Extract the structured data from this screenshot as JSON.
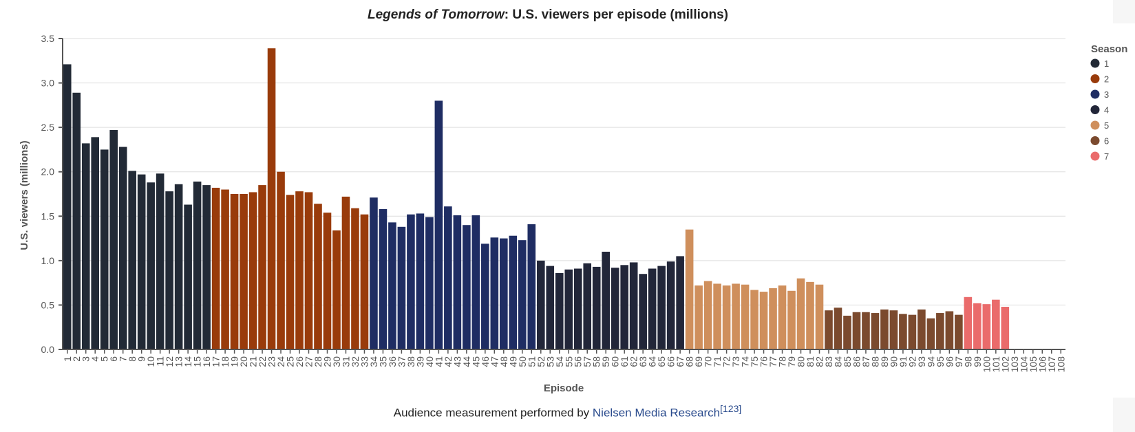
{
  "colors": {
    "season1": "#222a36",
    "season2": "#993b0b",
    "season3": "#1f2d63",
    "season4": "#222639",
    "season5": "#cf8f5c",
    "season6": "#7b4a2e",
    "season7": "#ea6b6b",
    "link": "#2a4b8d"
  },
  "footer": {
    "prefix": "Audience measurement performed by ",
    "link": "Nielsen Media Research",
    "ref": "[123]"
  },
  "chart_data": {
    "type": "bar",
    "title_italic": "Legends of Tomorrow",
    "title_rest": ": U.S. viewers per episode (millions)",
    "xlabel": "Episode",
    "ylabel": "U.S. viewers (millions)",
    "ylim": [
      0,
      3.5
    ],
    "yticks": [
      "0.0",
      "0.5",
      "1.0",
      "1.5",
      "2.0",
      "2.5",
      "3.0",
      "3.5"
    ],
    "grid": true,
    "legend": {
      "title": "Season",
      "placement": "top-right",
      "entries": [
        "1",
        "2",
        "3",
        "4",
        "5",
        "6",
        "7"
      ]
    },
    "x_range": [
      1,
      108
    ],
    "series": [
      {
        "name": "1",
        "start_episode": 1,
        "values": [
          3.21,
          2.89,
          2.32,
          2.39,
          2.25,
          2.47,
          2.28,
          2.01,
          1.97,
          1.88,
          1.98,
          1.78,
          1.86,
          1.63,
          1.89,
          1.85
        ]
      },
      {
        "name": "2",
        "start_episode": 17,
        "values": [
          1.82,
          1.8,
          1.75,
          1.75,
          1.77,
          1.85,
          3.39,
          2.0,
          1.74,
          1.78,
          1.77,
          1.64,
          1.54,
          1.34,
          1.72,
          1.59,
          1.52
        ]
      },
      {
        "name": "3",
        "start_episode": 34,
        "values": [
          1.71,
          1.58,
          1.43,
          1.38,
          1.52,
          1.53,
          1.49,
          2.8,
          1.61,
          1.51,
          1.4,
          1.51,
          1.19,
          1.26,
          1.25,
          1.28,
          1.23,
          1.41
        ]
      },
      {
        "name": "4",
        "start_episode": 52,
        "values": [
          1.0,
          0.94,
          0.86,
          0.9,
          0.91,
          0.97,
          0.93,
          1.1,
          0.92,
          0.95,
          0.98,
          0.85,
          0.91,
          0.94,
          0.99,
          1.05
        ]
      },
      {
        "name": "5",
        "start_episode": 68,
        "values": [
          1.35,
          0.72,
          0.77,
          0.74,
          0.72,
          0.74,
          0.73,
          0.67,
          0.65,
          0.69,
          0.72,
          0.66,
          0.8,
          0.76,
          0.73
        ]
      },
      {
        "name": "6",
        "start_episode": 83,
        "values": [
          0.44,
          0.47,
          0.38,
          0.42,
          0.42,
          0.41,
          0.45,
          0.44,
          0.4,
          0.39,
          0.45,
          0.35,
          0.41,
          0.43,
          0.39
        ]
      },
      {
        "name": "7",
        "start_episode": 98,
        "values": [
          0.59,
          0.52,
          0.51,
          0.56,
          0.48
        ]
      }
    ]
  }
}
